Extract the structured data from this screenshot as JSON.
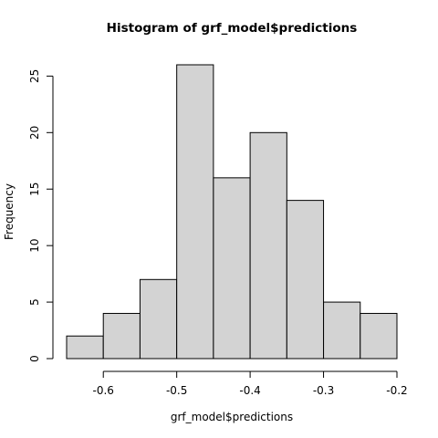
{
  "chart_data": {
    "type": "bar",
    "title": "Histogram of grf_model$predictions",
    "xlabel": "grf_model$predictions",
    "ylabel": "Frequency",
    "bins": [
      {
        "from": -0.65,
        "to": -0.6,
        "count": 2
      },
      {
        "from": -0.6,
        "to": -0.55,
        "count": 4
      },
      {
        "from": -0.55,
        "to": -0.5,
        "count": 7
      },
      {
        "from": -0.5,
        "to": -0.45,
        "count": 26
      },
      {
        "from": -0.45,
        "to": -0.4,
        "count": 16
      },
      {
        "from": -0.4,
        "to": -0.35,
        "count": 20
      },
      {
        "from": -0.35,
        "to": -0.3,
        "count": 14
      },
      {
        "from": -0.3,
        "to": -0.25,
        "count": 5
      },
      {
        "from": -0.25,
        "to": -0.2,
        "count": 4
      }
    ],
    "xlim": [
      -0.65,
      -0.2
    ],
    "ylim": [
      0,
      26
    ],
    "x_ticks": [
      {
        "value": -0.6,
        "label": "-0.6"
      },
      {
        "value": -0.5,
        "label": "-0.5"
      },
      {
        "value": -0.4,
        "label": "-0.4"
      },
      {
        "value": -0.3,
        "label": "-0.3"
      },
      {
        "value": -0.2,
        "label": "-0.2"
      }
    ],
    "y_ticks": [
      {
        "value": 0,
        "label": "0"
      },
      {
        "value": 5,
        "label": "5"
      },
      {
        "value": 10,
        "label": "10"
      },
      {
        "value": 15,
        "label": "15"
      },
      {
        "value": 20,
        "label": "20"
      },
      {
        "value": 25,
        "label": "25"
      }
    ],
    "bar_color": "#d3d3d3",
    "edge_color": "#000000",
    "grid": false
  }
}
